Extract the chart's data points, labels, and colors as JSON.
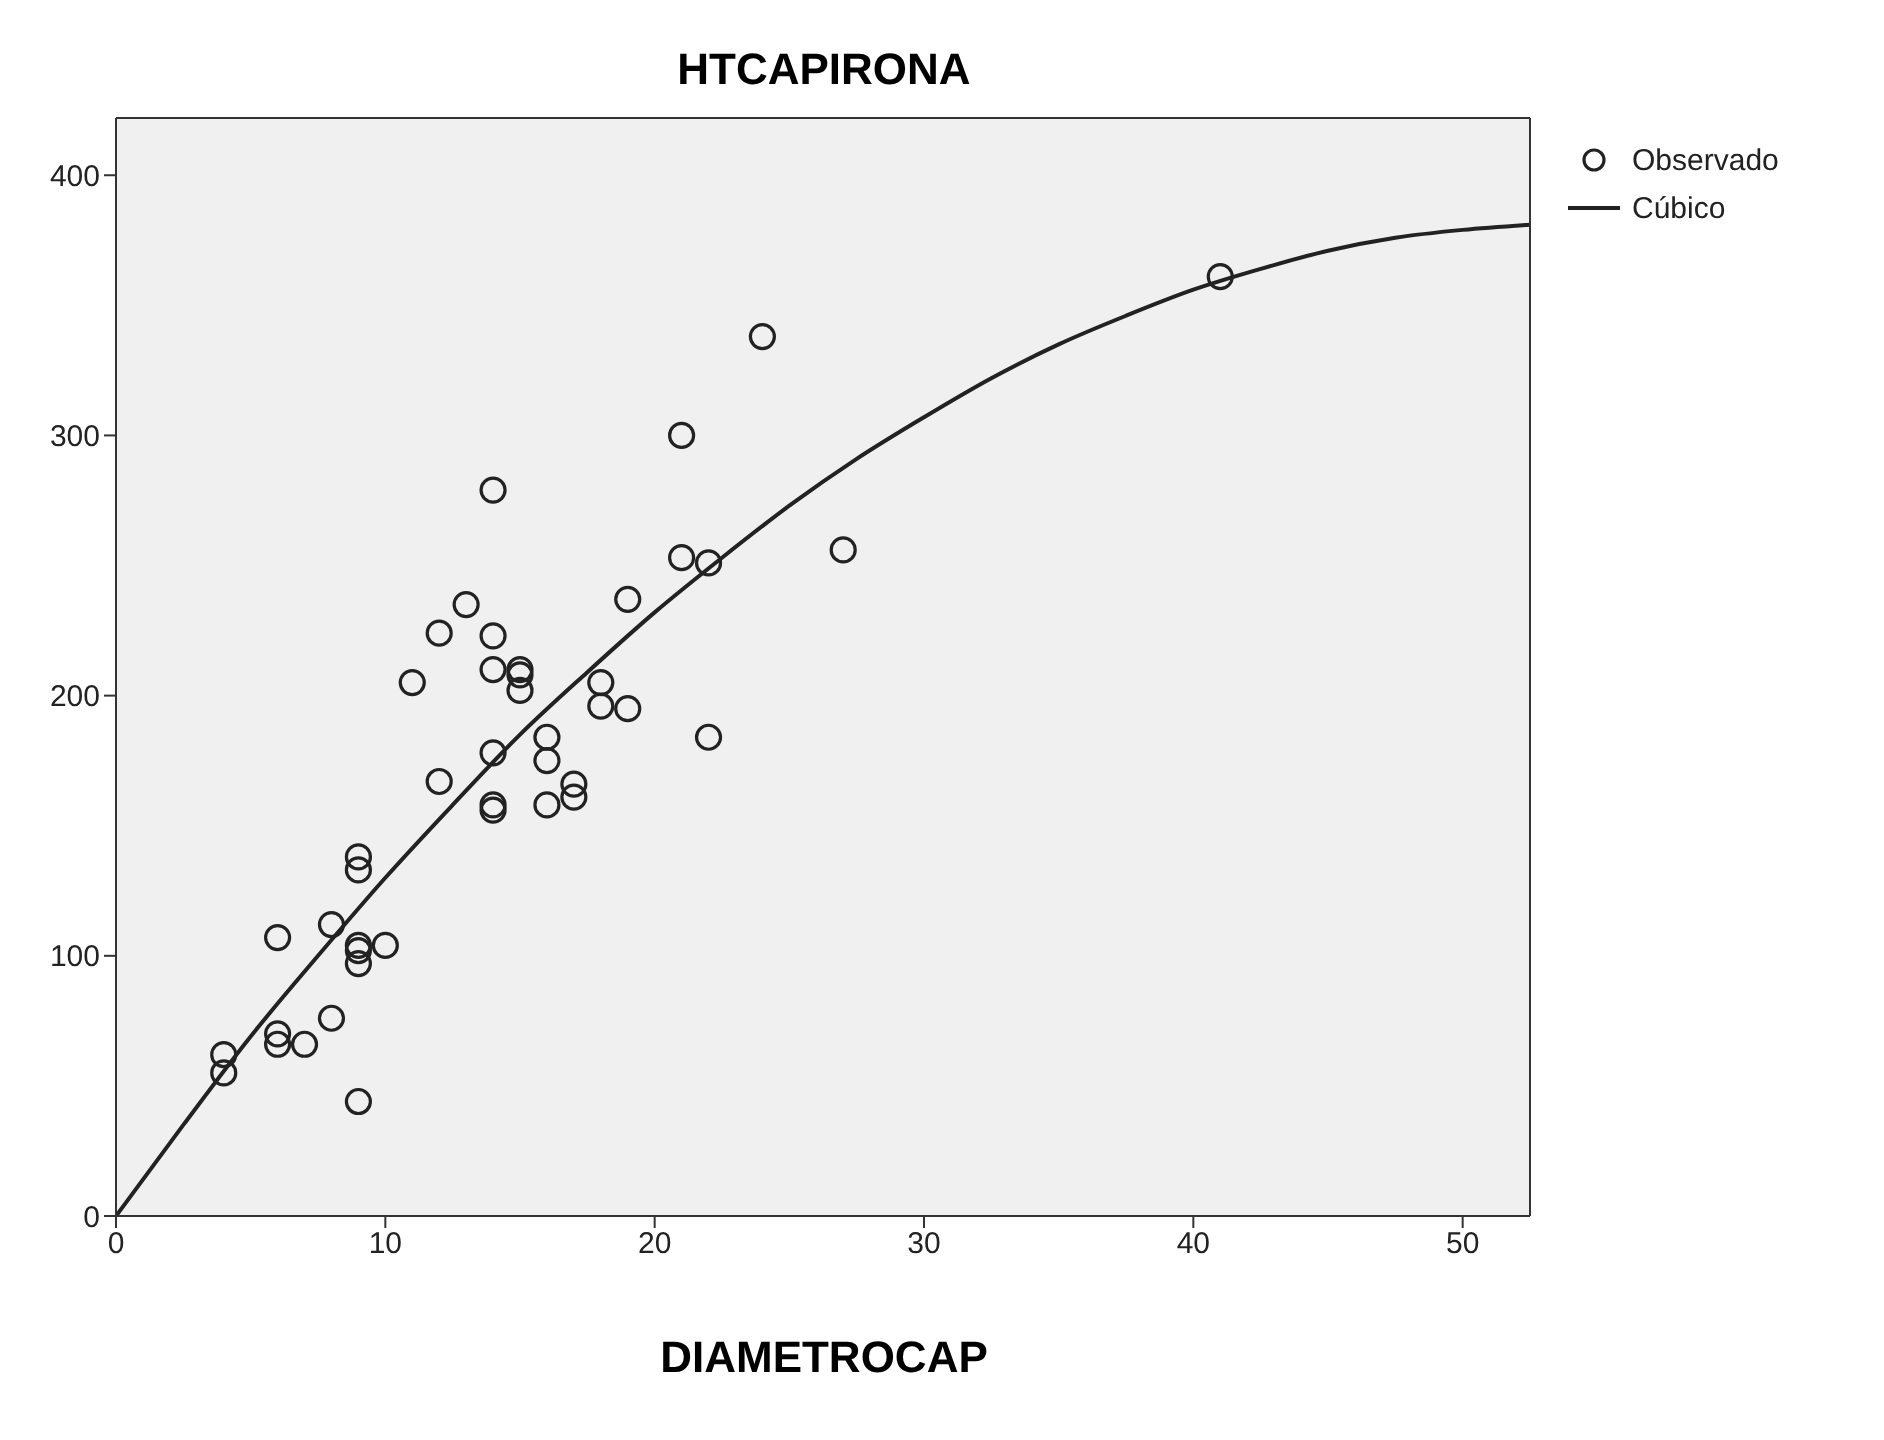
{
  "chart_data": {
    "type": "scatter",
    "title": "HTCAPIRONA",
    "xlabel": "DIAMETROCAP",
    "xlim": [
      0,
      52.5
    ],
    "xticks": [
      0,
      10,
      20,
      30,
      40,
      50
    ],
    "ylim": [
      0,
      422
    ],
    "yticks": [
      0,
      100,
      200,
      300,
      400
    ],
    "legend": "top right",
    "marker": "circle",
    "series": [
      {
        "name": "Observado",
        "color": "#222222",
        "x": [
          4,
          4,
          6,
          6,
          6,
          7,
          8,
          8,
          9,
          9,
          9,
          9,
          9,
          9,
          10,
          11,
          12,
          12,
          13,
          14,
          14,
          14,
          14,
          14,
          14,
          15,
          15,
          15,
          16,
          16,
          16,
          17,
          17,
          18,
          18,
          19,
          19,
          21,
          21,
          22,
          22,
          24,
          27,
          41
        ],
        "values": [
          62,
          55,
          107,
          70,
          66,
          66,
          112,
          76,
          138,
          133,
          104,
          102,
          97,
          44,
          104,
          205,
          224,
          167,
          235,
          279,
          223,
          210,
          178,
          158,
          156,
          210,
          208,
          202,
          184,
          175,
          158,
          166,
          161,
          205,
          196,
          237,
          195,
          300,
          253,
          251,
          184,
          338,
          256,
          361
        ]
      },
      {
        "name": "Cúbico",
        "type": "line",
        "color": "#222222",
        "line_style": "solid",
        "marker": "none",
        "x": [
          0,
          2.5,
          5,
          7.5,
          10,
          12.5,
          15,
          17.5,
          20,
          22.5,
          25,
          27.5,
          30,
          32.5,
          35,
          37.5,
          40,
          42.5,
          45,
          47.5,
          50,
          52.5
        ],
        "values": [
          0,
          35,
          69,
          100,
          130,
          158,
          185,
          209,
          232,
          253,
          273,
          291,
          307,
          322,
          335,
          346,
          356,
          364,
          371,
          376,
          379,
          381
        ]
      }
    ]
  }
}
